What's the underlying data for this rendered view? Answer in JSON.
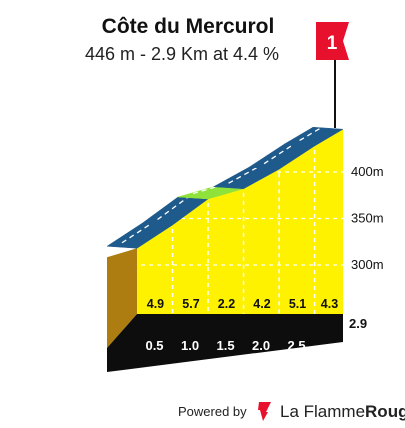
{
  "chart_data": {
    "type": "area",
    "title": "Côte du Mercurol",
    "subtitle": "446 m - 2.9 Km at 4.4 %",
    "climb_number": "1",
    "distance_km": [
      0,
      0.5,
      1.0,
      1.5,
      2.0,
      2.5,
      2.9
    ],
    "elevation_m": [
      318,
      343,
      371,
      382,
      403,
      428,
      446
    ],
    "segments": [
      {
        "grade_label": "4.9",
        "color": "#fff200"
      },
      {
        "grade_label": "5.7",
        "color": "#fff200"
      },
      {
        "grade_label": "2.2",
        "color": "#8ee23a"
      },
      {
        "grade_label": "4.2",
        "color": "#fff200"
      },
      {
        "grade_label": "5.1",
        "color": "#fff200"
      },
      {
        "grade_label": "4.3",
        "color": "#fff200"
      }
    ],
    "x_tick_labels": [
      "0.5",
      "1.0",
      "1.5",
      "2.0",
      "2.5"
    ],
    "end_label": "2.9",
    "y_ticks": [
      300,
      350,
      400
    ],
    "y_tick_labels": [
      "300m",
      "350m",
      "400m"
    ],
    "ylim": [
      275,
      446
    ],
    "colors": {
      "road": "#1f5a8c",
      "road_edge": "#ffffff",
      "fill_default": "#fff200",
      "side": "#ad7d12",
      "base": "#0d0d0d",
      "flag": "#e8112d",
      "gridline": "#ffffff"
    }
  },
  "footer": {
    "powered_by": "Powered by",
    "brand_main": "La Flamme",
    "brand_accent": "Rouge"
  }
}
